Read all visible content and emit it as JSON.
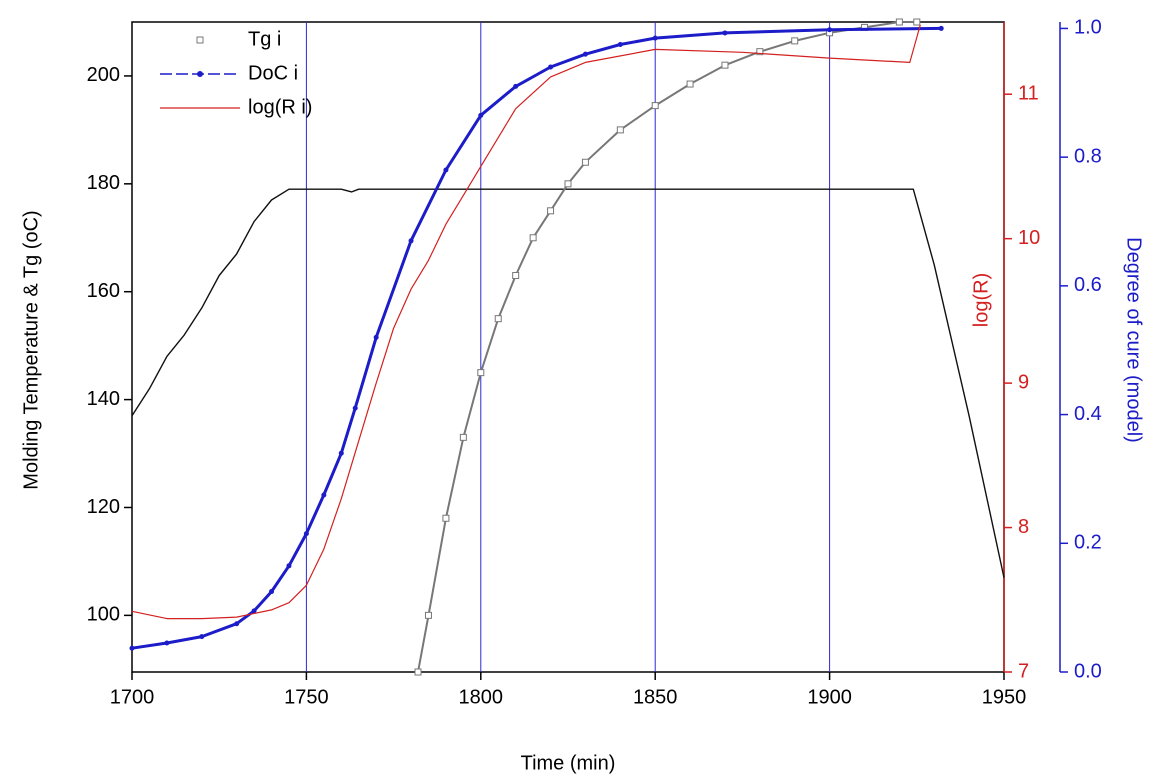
{
  "chart_data": {
    "type": "line",
    "xlabel": "Time (min)",
    "ylabel": "Molding Temperature & Tg (oC)",
    "y2label": "log(R)",
    "y3label": "Degree of cure (model)",
    "xlim": [
      1700,
      1950
    ],
    "xticks": [
      1700,
      1750,
      1800,
      1850,
      1900,
      1950
    ],
    "ylim": [
      89.5,
      210
    ],
    "yticks": [
      100,
      120,
      140,
      160,
      180,
      200
    ],
    "y2lim": [
      7,
      11.5
    ],
    "y2ticks": [
      7,
      8,
      9,
      10,
      11
    ],
    "y2color": "#d42020",
    "y3lim": [
      0,
      1.01
    ],
    "y3ticks": [
      {
        "value": 0,
        "label": "0.0"
      },
      0.2,
      0.4,
      0.6,
      0.8,
      {
        "value": 1,
        "label": "1.0"
      }
    ],
    "y3color": "#1c1cc8",
    "xgrid": [
      1750,
      1800,
      1850,
      1900
    ],
    "gridcolor": "#2a2ad0",
    "legend": "upper left",
    "series": [
      {
        "color": "#111111",
        "axis": "y",
        "marker": "none",
        "width": 1.4,
        "x": [
          1700,
          1705,
          1710,
          1715,
          1720,
          1725,
          1730,
          1735,
          1740,
          1745,
          1750,
          1755,
          1760,
          1763,
          1765,
          1800,
          1850,
          1900,
          1924,
          1930,
          1940,
          1950
        ],
        "values": [
          137,
          142,
          148,
          152,
          157,
          163,
          167,
          173,
          177,
          179,
          179,
          179,
          179,
          178.5,
          179,
          179,
          179,
          179,
          179,
          165,
          137,
          107
        ]
      },
      {
        "name": "Tg i",
        "color": "#777777",
        "axis": "y",
        "marker": "square",
        "width": 2,
        "x": [
          1782,
          1785,
          1790,
          1795,
          1800,
          1805,
          1810,
          1815,
          1820,
          1825,
          1830,
          1840,
          1850,
          1860,
          1870,
          1880,
          1890,
          1900,
          1910,
          1920,
          1925
        ],
        "values": [
          89.5,
          100,
          118,
          133,
          145,
          155,
          163,
          170,
          175,
          180,
          184,
          190,
          194.5,
          198.5,
          202,
          204.5,
          206.5,
          208,
          209,
          210,
          210
        ]
      },
      {
        "name": "DoC i",
        "color": "#1c1cc8",
        "axis": "y3",
        "marker": "dot",
        "width": 3,
        "x": [
          1700,
          1710,
          1720,
          1730,
          1735,
          1740,
          1745,
          1750,
          1755,
          1760,
          1764,
          1770,
          1780,
          1790,
          1800,
          1810,
          1820,
          1830,
          1840,
          1850,
          1870,
          1900,
          1932
        ],
        "values": [
          0.037,
          0.045,
          0.055,
          0.075,
          0.095,
          0.125,
          0.165,
          0.215,
          0.275,
          0.34,
          0.41,
          0.52,
          0.67,
          0.78,
          0.865,
          0.91,
          0.94,
          0.96,
          0.975,
          0.985,
          0.993,
          0.998,
          1.0
        ]
      },
      {
        "name": "log(R i)",
        "color": "#d42020",
        "axis": "y2",
        "marker": "none",
        "width": 1.2,
        "x": [
          1700,
          1710,
          1720,
          1730,
          1740,
          1745,
          1750,
          1755,
          1760,
          1765,
          1770,
          1775,
          1780,
          1785,
          1790,
          1795,
          1800,
          1810,
          1820,
          1830,
          1850,
          1875,
          1900,
          1923,
          1926
        ],
        "values": [
          7.42,
          7.37,
          7.37,
          7.38,
          7.43,
          7.48,
          7.6,
          7.85,
          8.2,
          8.6,
          9.0,
          9.38,
          9.65,
          9.85,
          10.1,
          10.3,
          10.5,
          10.9,
          11.12,
          11.22,
          11.31,
          11.29,
          11.25,
          11.22,
          11.48
        ]
      }
    ]
  }
}
